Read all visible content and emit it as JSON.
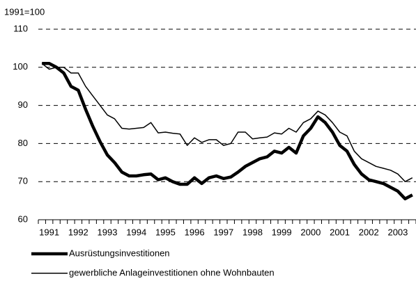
{
  "chart_data": {
    "type": "line",
    "y_label": "1991=100",
    "categories": [
      "1991",
      null,
      null,
      null,
      "1992",
      null,
      null,
      null,
      "1993",
      null,
      null,
      null,
      "1994",
      null,
      null,
      null,
      "1995",
      null,
      null,
      null,
      "1996",
      null,
      null,
      null,
      "1997",
      null,
      null,
      null,
      "1998",
      null,
      null,
      null,
      "1999",
      null,
      null,
      null,
      "2000",
      null,
      null,
      null,
      "2001",
      null,
      null,
      null,
      "2002",
      null,
      null,
      null,
      "2003",
      null,
      null,
      null
    ],
    "series": [
      {
        "name": "Ausrüstungsinvestitionen",
        "color": "#000000",
        "width": 4.5,
        "values": [
          101,
          101,
          100,
          98.5,
          95,
          94,
          89,
          84.5,
          80.5,
          77,
          75,
          72.5,
          71.5,
          71.5,
          71.8,
          72,
          70.5,
          71,
          70,
          69.3,
          69.3,
          71,
          69.5,
          71,
          71.5,
          70.8,
          71.2,
          72.5,
          74,
          75,
          76,
          76.5,
          78,
          77.5,
          79,
          77.5,
          82,
          84,
          87,
          85.5,
          83,
          79.5,
          78,
          74.5,
          72,
          70.5,
          70,
          69.5,
          68.5,
          67.5,
          65.5,
          66.5
        ]
      },
      {
        "name": "gewerbliche Anlageinvestitionen ohne Wohnbauten",
        "color": "#000000",
        "width": 1.5,
        "values": [
          101,
          99.5,
          100,
          100,
          98.5,
          98.5,
          95,
          92.5,
          90,
          87.5,
          86.5,
          84,
          83.8,
          84,
          84.2,
          85.5,
          82.8,
          83,
          82.7,
          82.5,
          79.5,
          81.5,
          80.3,
          81,
          81,
          79.5,
          80,
          83,
          83,
          81.2,
          81.5,
          81.7,
          82.8,
          82.5,
          84,
          83,
          85.5,
          86.5,
          88.5,
          87.5,
          85.5,
          83,
          82,
          78,
          76,
          75,
          74,
          73.5,
          73,
          72,
          70,
          71
        ]
      }
    ],
    "ylim": [
      60,
      110
    ],
    "yticks": [
      60,
      70,
      80,
      90,
      100,
      110
    ],
    "grid": true
  }
}
